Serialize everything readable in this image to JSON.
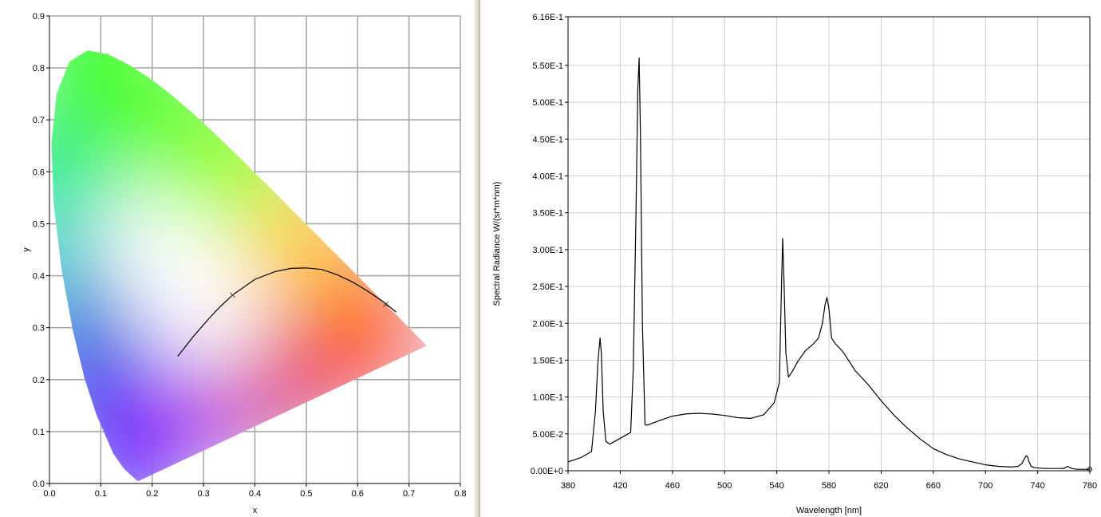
{
  "chart_data": [
    {
      "type": "scatter",
      "name": "cie_1931_chromaticity",
      "xlabel": "x",
      "ylabel": "y",
      "xlim": [
        0,
        0.8
      ],
      "ylim": [
        0,
        0.9
      ],
      "grid": true,
      "x_ticks": [
        "0.0",
        "0.1",
        "0.2",
        "0.3",
        "0.4",
        "0.5",
        "0.6",
        "0.7",
        "0.8"
      ],
      "y_ticks": [
        "0.0",
        "0.1",
        "0.2",
        "0.3",
        "0.4",
        "0.5",
        "0.6",
        "0.7",
        "0.8",
        "0.9"
      ],
      "spectral_locus": {
        "x": [
          0.1741,
          0.1738,
          0.1733,
          0.1726,
          0.1714,
          0.1689,
          0.1644,
          0.1566,
          0.144,
          0.1241,
          0.0913,
          0.0687,
          0.0454,
          0.0235,
          0.0082,
          0.0039,
          0.0139,
          0.0389,
          0.0743,
          0.1142,
          0.1547,
          0.1929,
          0.2296,
          0.2658,
          0.3016,
          0.3373,
          0.3731,
          0.4087,
          0.4441,
          0.4788,
          0.5125,
          0.5448,
          0.5752,
          0.6029,
          0.627,
          0.6482,
          0.6658,
          0.6801,
          0.6915,
          0.7006,
          0.7079,
          0.714,
          0.719,
          0.723,
          0.726,
          0.7347
        ],
        "y": [
          0.005,
          0.0049,
          0.0048,
          0.0048,
          0.0051,
          0.0069,
          0.0109,
          0.0177,
          0.0297,
          0.0578,
          0.1327,
          0.2007,
          0.295,
          0.4127,
          0.5384,
          0.6548,
          0.7502,
          0.812,
          0.8338,
          0.8262,
          0.8059,
          0.7816,
          0.7543,
          0.7243,
          0.6923,
          0.6589,
          0.6245,
          0.5896,
          0.5547,
          0.5202,
          0.4866,
          0.4544,
          0.4242,
          0.3965,
          0.3725,
          0.3514,
          0.334,
          0.3197,
          0.3083,
          0.2993,
          0.292,
          0.2859,
          0.2809,
          0.277,
          0.274,
          0.2653
        ]
      },
      "planckian_locus": {
        "x": [
          0.25,
          0.28,
          0.31,
          0.33,
          0.3565,
          0.4,
          0.44,
          0.47,
          0.5,
          0.53,
          0.56,
          0.59,
          0.62,
          0.65,
          0.675
        ],
        "y": [
          0.245,
          0.283,
          0.317,
          0.338,
          0.3627,
          0.393,
          0.408,
          0.414,
          0.415,
          0.412,
          0.402,
          0.388,
          0.37,
          0.35,
          0.33
        ]
      },
      "markers": [
        {
          "x": 0.3565,
          "y": 0.3627
        },
        {
          "x": 0.6547,
          "y": 0.3449
        }
      ]
    },
    {
      "type": "line",
      "name": "spectral_radiance",
      "xlabel": "Wavelength [nm]",
      "ylabel": "Spectral Radiance W/(sr*m*nm)",
      "xlim": [
        380,
        780
      ],
      "ylim": [
        0,
        0.616
      ],
      "grid": true,
      "x_ticks": [
        "380",
        "420",
        "460",
        "500",
        "540",
        "580",
        "620",
        "660",
        "700",
        "740",
        "780"
      ],
      "y_ticks": [
        "0.00E+0",
        "5.00E-2",
        "1.00E-1",
        "1.50E-1",
        "2.00E-1",
        "2.50E-1",
        "3.00E-1",
        "3.50E-1",
        "4.00E-1",
        "4.50E-1",
        "5.00E-1",
        "5.50E-1",
        "6.16E-1"
      ],
      "series": [
        {
          "x": [
            380,
            390,
            398,
            401,
            403,
            404.5,
            405.5,
            407,
            409,
            412,
            418,
            424,
            428,
            430,
            432,
            433.5,
            434.5,
            435.5,
            437,
            439,
            441,
            444,
            450,
            460,
            470,
            480,
            490,
            500,
            510,
            520,
            530,
            538,
            542,
            543.5,
            544.5,
            545.5,
            547,
            549,
            552,
            556,
            562,
            568,
            572,
            575,
            577,
            578.5,
            580,
            582,
            585,
            590,
            595,
            600,
            610,
            620,
            630,
            640,
            650,
            660,
            670,
            680,
            690,
            700,
            710,
            720,
            725,
            728,
            731,
            732,
            733,
            735,
            738,
            745,
            755,
            760,
            763,
            766,
            770,
            775,
            780
          ],
          "y": [
            0.012,
            0.018,
            0.026,
            0.08,
            0.15,
            0.18,
            0.16,
            0.08,
            0.04,
            0.036,
            0.042,
            0.048,
            0.052,
            0.14,
            0.34,
            0.52,
            0.56,
            0.46,
            0.2,
            0.062,
            0.062,
            0.064,
            0.068,
            0.074,
            0.077,
            0.078,
            0.077,
            0.075,
            0.072,
            0.071,
            0.076,
            0.092,
            0.12,
            0.24,
            0.315,
            0.26,
            0.16,
            0.127,
            0.135,
            0.148,
            0.163,
            0.172,
            0.18,
            0.2,
            0.225,
            0.235,
            0.22,
            0.18,
            0.172,
            0.163,
            0.15,
            0.136,
            0.117,
            0.095,
            0.075,
            0.058,
            0.043,
            0.03,
            0.022,
            0.016,
            0.012,
            0.008,
            0.006,
            0.005,
            0.006,
            0.01,
            0.02,
            0.02,
            0.014,
            0.006,
            0.004,
            0.003,
            0.003,
            0.003,
            0.006,
            0.003,
            0.002,
            0.002,
            0.002
          ]
        }
      ]
    }
  ]
}
